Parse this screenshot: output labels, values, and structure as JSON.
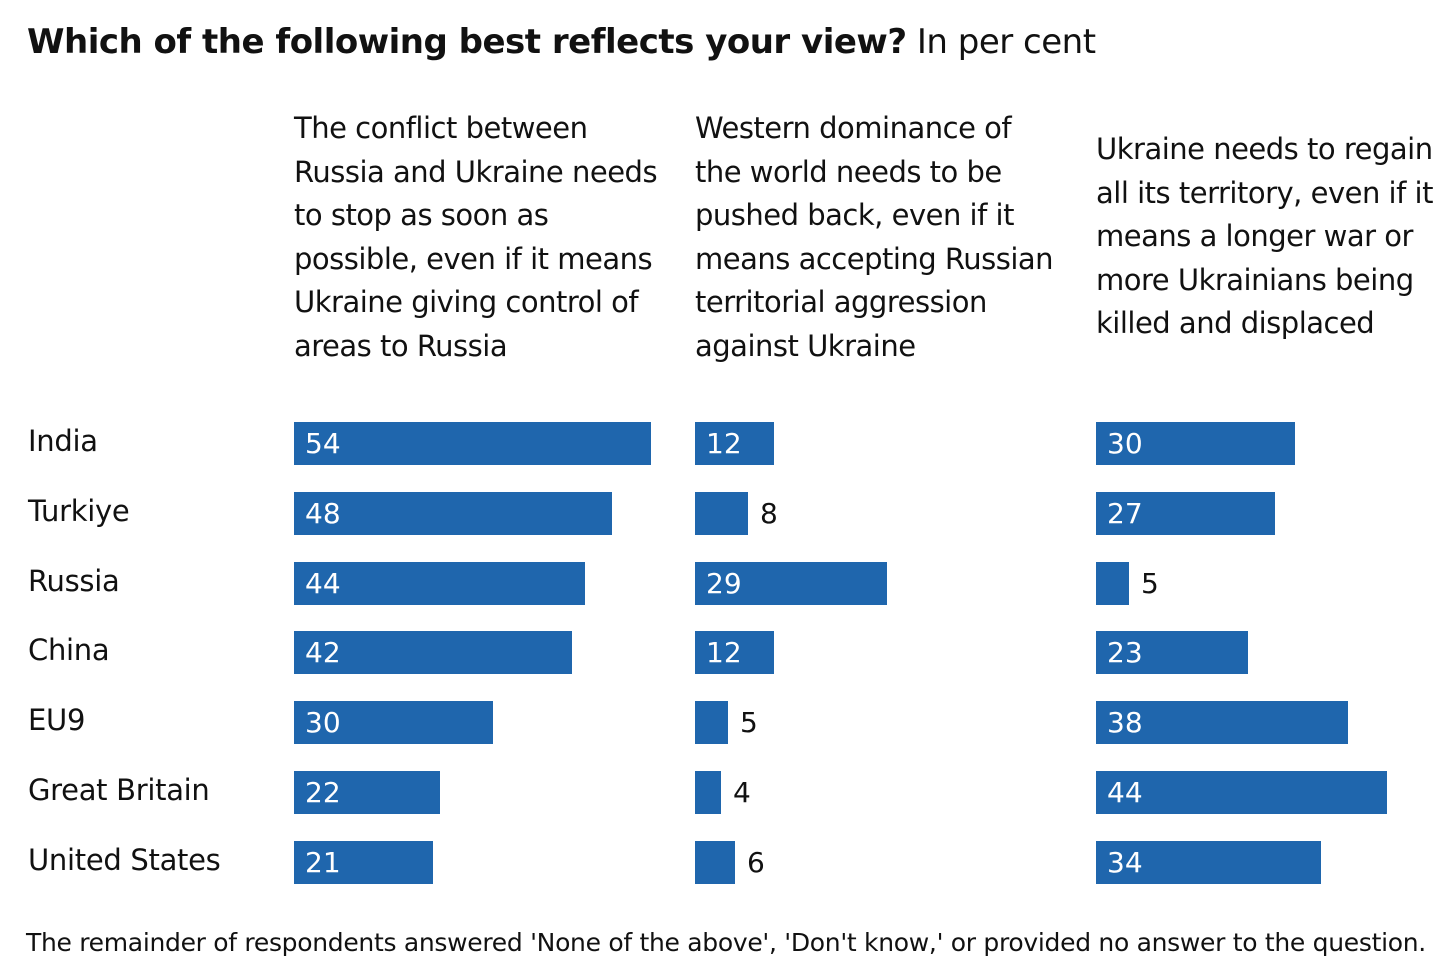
{
  "title": {
    "main": "Which of the following best reflects your view?",
    "unit": "In per cent"
  },
  "footnote": "The remainder of respondents answered 'None of the above', 'Don't know,' or provided no answer to the question.",
  "colors": {
    "bar": "#1f66ad",
    "inside_label": "#ffffff",
    "outside_label": "#111111"
  },
  "chart_data": {
    "type": "bar",
    "orientation": "horizontal",
    "title": "Which of the following best reflects your view? In per cent",
    "categories": [
      "India",
      "Turkiye",
      "Russia",
      "China",
      "EU9",
      "Great Britain",
      "United States"
    ],
    "xlim": [
      0,
      100
    ],
    "grid": false,
    "series": [
      {
        "name": "The conflict between Russia and Ukraine needs to stop as soon as possible, even if it means Ukraine giving control of areas to Russia",
        "values": [
          54,
          48,
          44,
          42,
          30,
          22,
          21
        ]
      },
      {
        "name": "Western dominance of the world needs to be pushed back, even if it means accepting Russian territorial aggression against Ukraine",
        "values": [
          12,
          8,
          29,
          12,
          5,
          4,
          6
        ]
      },
      {
        "name": "Ukraine needs to regain all its territory, even if it means a longer war or more Ukrainians being killed and displaced",
        "values": [
          30,
          27,
          5,
          23,
          38,
          44,
          34
        ]
      }
    ]
  }
}
